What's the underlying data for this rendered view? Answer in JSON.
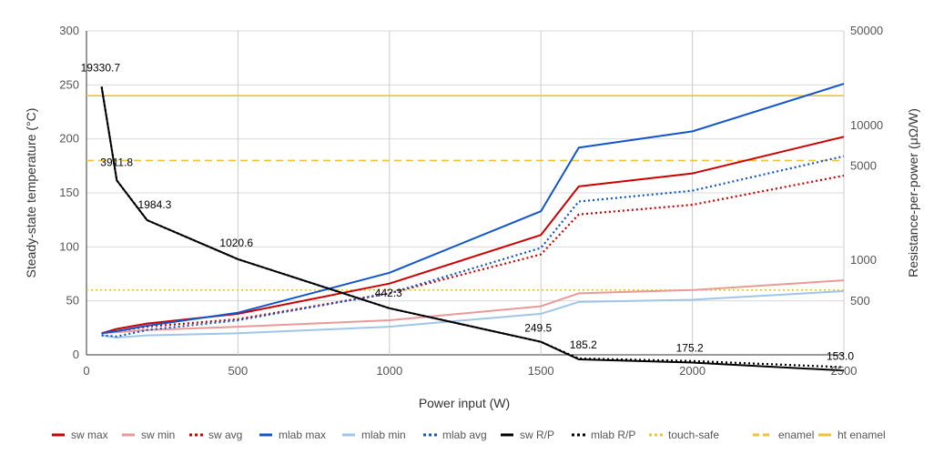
{
  "chart_data": {
    "type": "line",
    "title": "",
    "xlabel": "Power input (W)",
    "ylabel": "Steady-state temperature (°C)",
    "y2label": "Resistance-per-power (μΩ/W)",
    "xlim": [
      0,
      2500
    ],
    "ylim": [
      0,
      300
    ],
    "y2lim": [
      200,
      50000
    ],
    "y2scale": "log",
    "xticks": [
      0,
      500,
      1000,
      1500,
      2000,
      2500
    ],
    "yticks": [
      0,
      50,
      100,
      150,
      200,
      250,
      300
    ],
    "y2ticks": [
      500,
      1000,
      5000,
      10000,
      50000
    ],
    "grid": true,
    "legend_position": "bottom",
    "series": [
      {
        "name": "sw max",
        "axis": "left",
        "color": "#cc0000",
        "dash": "solid",
        "x": [
          50,
          100,
          200,
          500,
          1000,
          1500,
          1625,
          2000,
          2500
        ],
        "y": [
          20,
          24,
          29,
          38,
          66,
          111,
          156,
          168,
          202
        ]
      },
      {
        "name": "sw min",
        "axis": "left",
        "color": "#ea9999",
        "dash": "solid",
        "x": [
          50,
          100,
          200,
          500,
          1000,
          1500,
          1625,
          2000,
          2500
        ],
        "y": [
          20,
          21,
          23,
          26,
          32,
          45,
          57,
          60,
          69
        ]
      },
      {
        "name": "sw avg",
        "axis": "left",
        "color": "#cc0000",
        "dash": "dotted",
        "x": [
          50,
          100,
          200,
          500,
          1000,
          1500,
          1625,
          2000,
          2500
        ],
        "y": [
          20,
          22,
          26,
          33,
          57,
          93,
          130,
          139,
          166
        ]
      },
      {
        "name": "mlab max",
        "axis": "left",
        "color": "#1155cc",
        "dash": "solid",
        "x": [
          50,
          100,
          200,
          500,
          1000,
          1500,
          1625,
          2000,
          2500
        ],
        "y": [
          20,
          22,
          27,
          39,
          76,
          133,
          192,
          207,
          251
        ]
      },
      {
        "name": "mlab min",
        "axis": "left",
        "color": "#9fc5e8",
        "dash": "solid",
        "x": [
          50,
          100,
          200,
          500,
          1000,
          1500,
          1625,
          2000,
          2500
        ],
        "y": [
          18,
          16,
          18,
          20,
          26,
          38,
          49,
          51,
          59
        ]
      },
      {
        "name": "mlab avg",
        "axis": "left",
        "color": "#1155cc",
        "dash": "dotted",
        "x": [
          50,
          100,
          200,
          500,
          1000,
          1500,
          1625,
          2000,
          2500
        ],
        "y": [
          18,
          17,
          23,
          32,
          57,
          99,
          142,
          152,
          184
        ]
      },
      {
        "name": "sw R/P",
        "axis": "right",
        "color": "#000000",
        "dash": "solid",
        "x": [
          50,
          100,
          200,
          500,
          1000,
          1500,
          1625,
          2000,
          2500
        ],
        "y": [
          19330.7,
          3911.8,
          1984.3,
          1020.6,
          442.3,
          249.5,
          185.2,
          175.2,
          153.0
        ]
      },
      {
        "name": "mlab R/P",
        "axis": "right",
        "color": "#000000",
        "dash": "dotted",
        "x": [
          50,
          100,
          200,
          500,
          1000,
          1500,
          1625,
          2000,
          2500
        ],
        "y": [
          19330.7,
          3911.8,
          1984.3,
          1020.6,
          442.3,
          249.5,
          188,
          180,
          162
        ]
      },
      {
        "name": "touch-safe",
        "axis": "left",
        "color": "#f1c232",
        "dash": "dotted",
        "x": [
          0,
          2500
        ],
        "y": [
          60,
          60
        ]
      },
      {
        "name": "enamel",
        "axis": "left",
        "color": "#f1c232",
        "dash": "dashed",
        "x": [
          0,
          2500
        ],
        "y": [
          180,
          180
        ]
      },
      {
        "name": "ht enamel",
        "axis": "left",
        "color": "#f1c232",
        "dash": "solid",
        "x": [
          0,
          2500
        ],
        "y": [
          240,
          240
        ]
      }
    ],
    "data_labels": [
      {
        "x": 50,
        "value": 19330.7,
        "text": "19330.7"
      },
      {
        "x": 100,
        "value": 3911.8,
        "text": "3911.8"
      },
      {
        "x": 200,
        "value": 1984.3,
        "text": "1984.3"
      },
      {
        "x": 500,
        "value": 1020.6,
        "text": "1020.6"
      },
      {
        "x": 1000,
        "value": 442.3,
        "text": "442.3"
      },
      {
        "x": 1500,
        "value": 249.5,
        "text": "249.5"
      },
      {
        "x": 1625,
        "value": 185.2,
        "text": "185.2"
      },
      {
        "x": 2000,
        "value": 175.2,
        "text": "175.2"
      },
      {
        "x": 2500,
        "value": 153.0,
        "text": "153.0"
      }
    ]
  }
}
